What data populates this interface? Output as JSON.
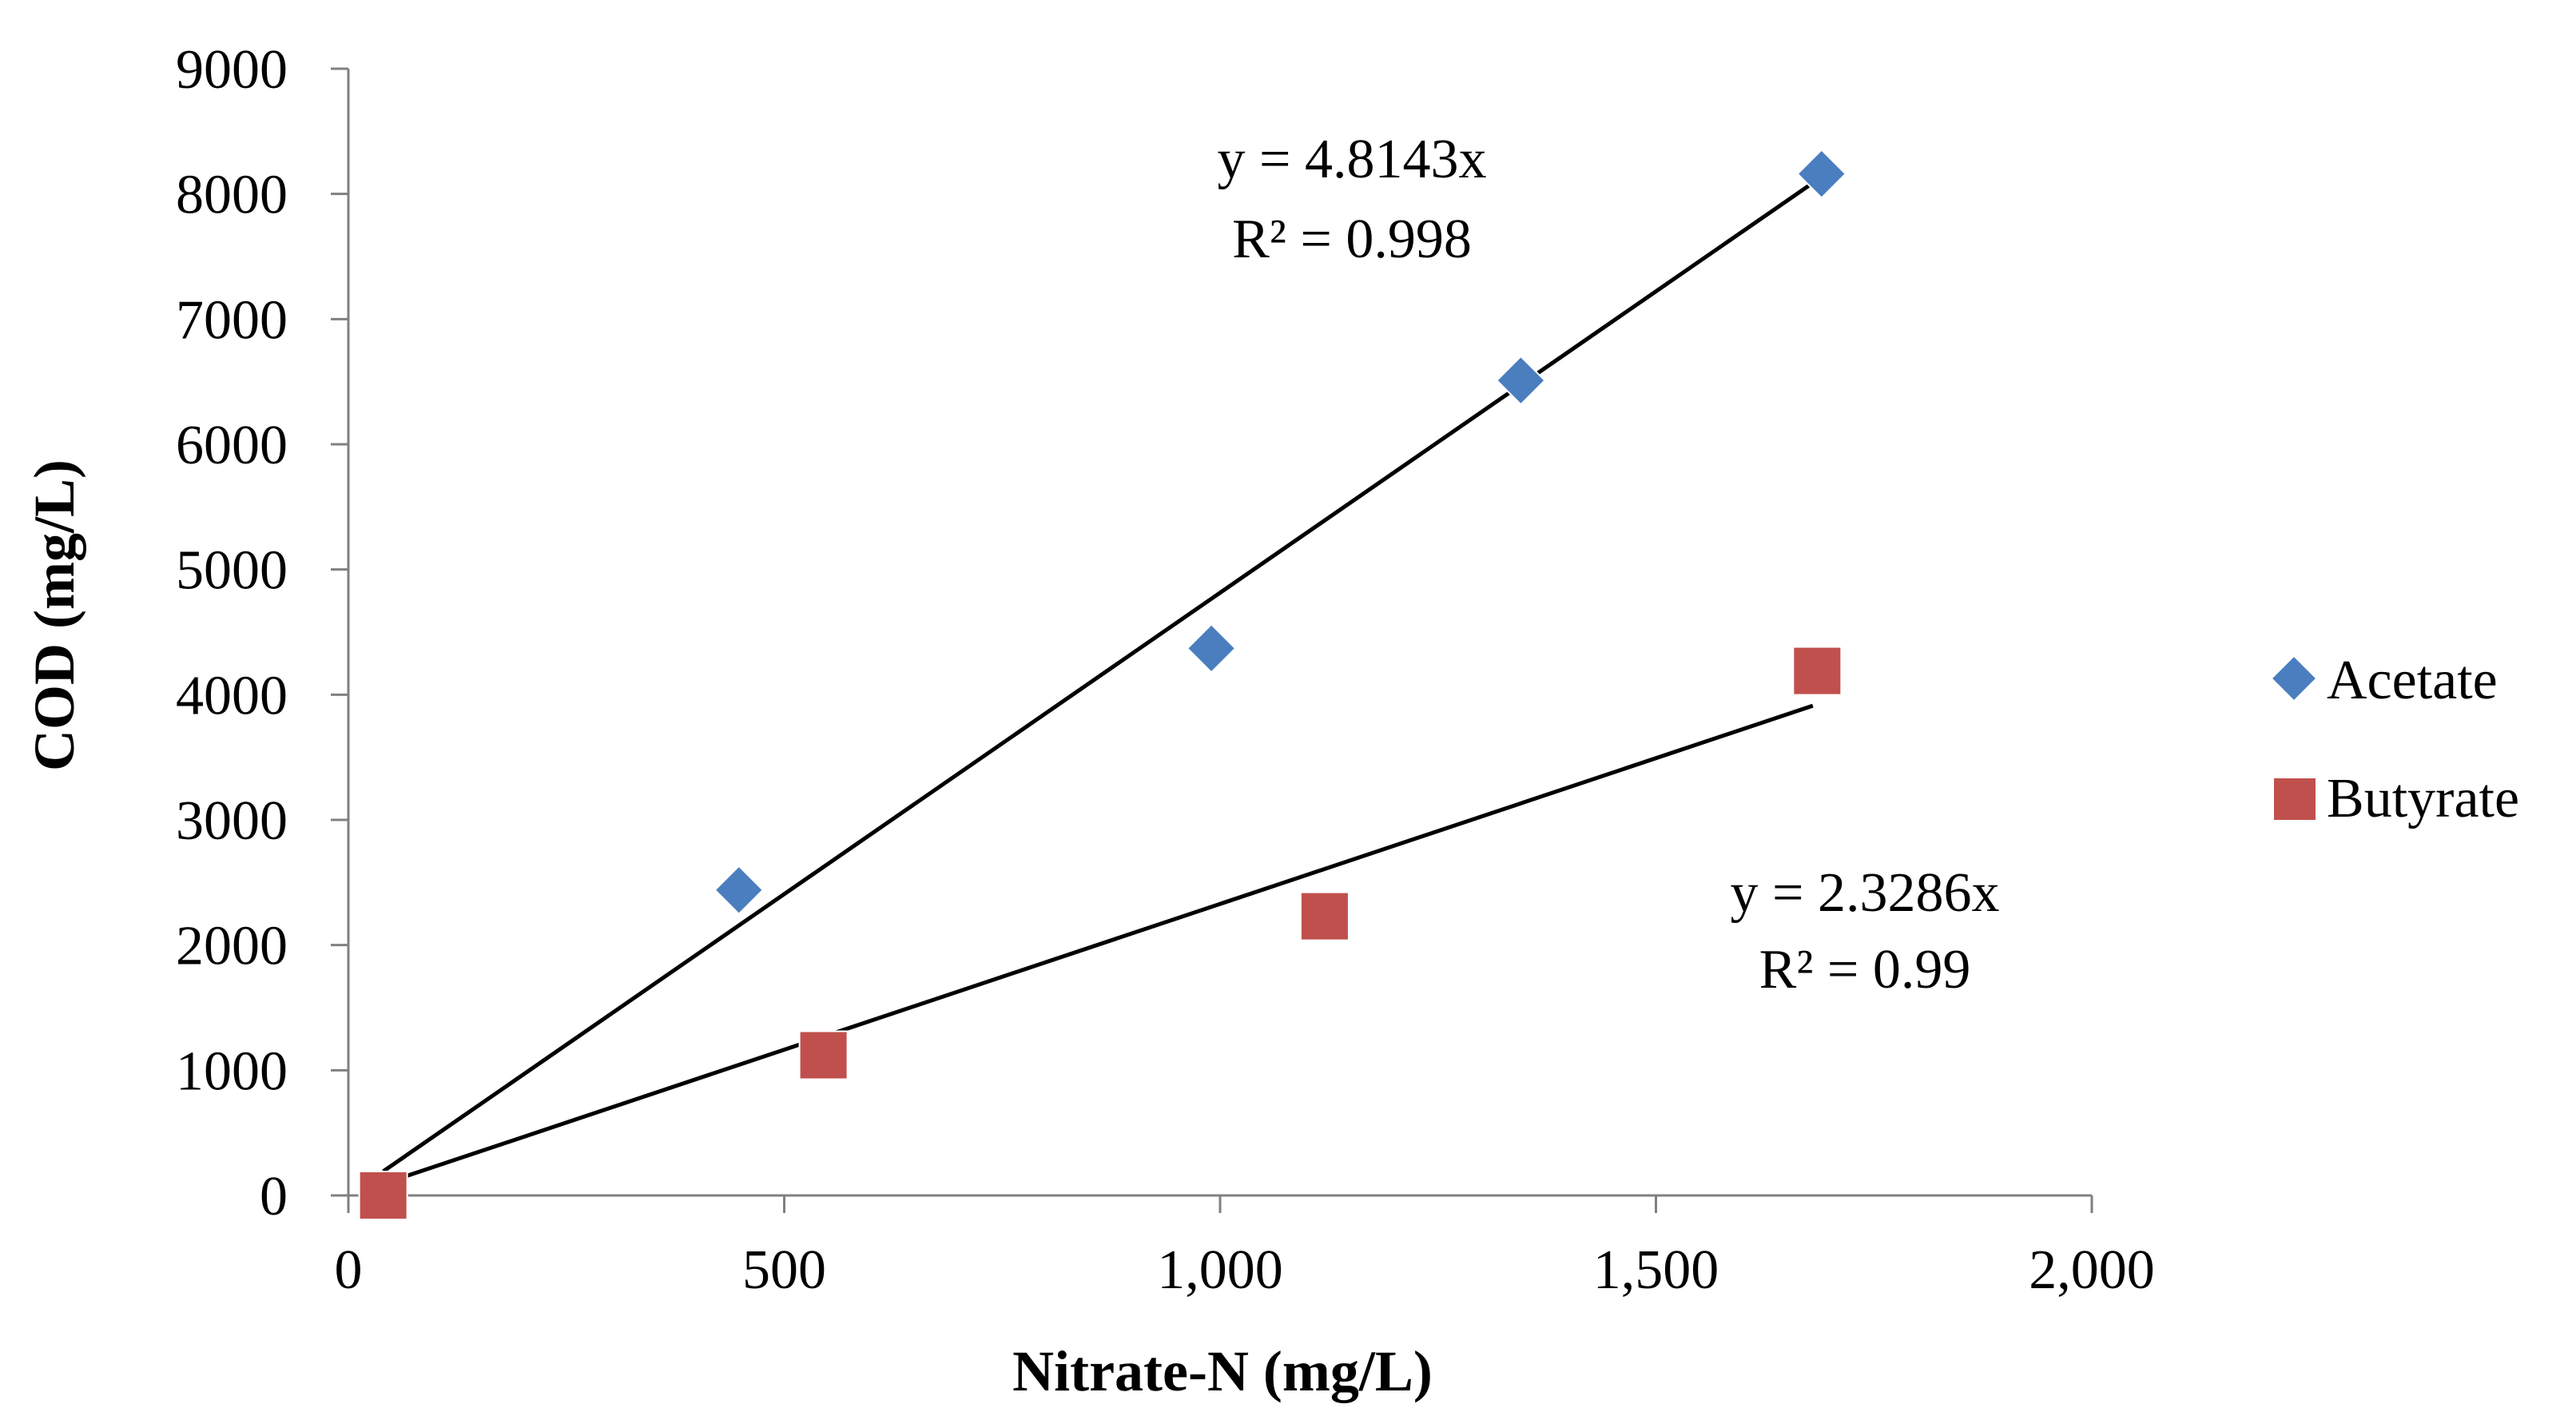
{
  "chart_data": {
    "type": "scatter",
    "xlabel": "Nitrate-N (mg/L)",
    "ylabel": "COD (mg/L)",
    "xlim": [
      0,
      2000
    ],
    "ylim": [
      0,
      9000
    ],
    "x_ticks": [
      "0",
      "500",
      "1,000",
      "1,500",
      "2,000"
    ],
    "y_ticks": [
      "0",
      "1000",
      "2000",
      "3000",
      "4000",
      "5000",
      "6000",
      "7000",
      "8000",
      "9000"
    ],
    "grid": false,
    "legend_position": "right",
    "series": [
      {
        "name": "Acetate",
        "marker": "diamond",
        "color": "#4a7ebf",
        "points": [
          {
            "x": 40,
            "y": 0
          },
          {
            "x": 448,
            "y": 2440
          },
          {
            "x": 990,
            "y": 4370
          },
          {
            "x": 1345,
            "y": 6510
          },
          {
            "x": 1690,
            "y": 8160
          }
        ],
        "trendline": {
          "slope": 4.8143,
          "x_range": [
            40,
            1690
          ],
          "equation": "y = 4.8143x",
          "r2": "R² = 0.998"
        }
      },
      {
        "name": "Butyrate",
        "marker": "square",
        "color": "#c0504d",
        "points": [
          {
            "x": 40,
            "y": 0
          },
          {
            "x": 545,
            "y": 1120
          },
          {
            "x": 1120,
            "y": 2230
          },
          {
            "x": 1685,
            "y": 4190
          }
        ],
        "trendline": {
          "slope": 2.3286,
          "x_range": [
            40,
            1680
          ],
          "equation": "y = 2.3286x",
          "r2": "R² = 0.99"
        }
      }
    ]
  }
}
